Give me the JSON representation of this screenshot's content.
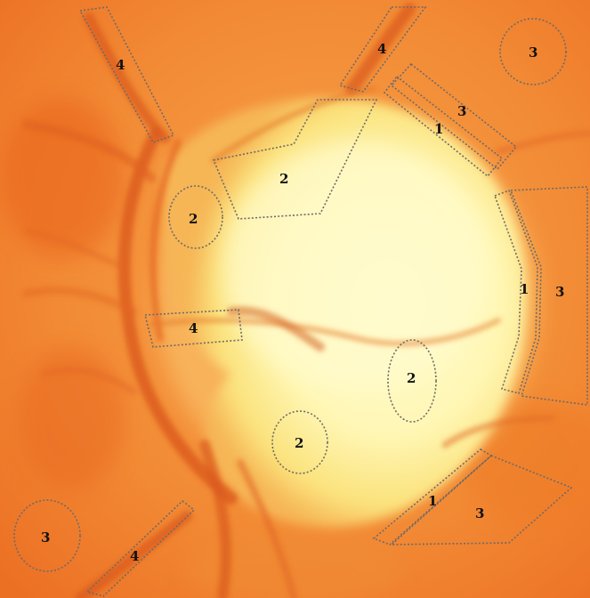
{
  "image": {
    "kind": "fundus-photograph-optic-disc",
    "colors": {
      "background": "#f07a2a",
      "disc_core": "#fffbc8",
      "disc_rim": "#fbe07a",
      "vessel": "#d9551a",
      "outline": "#6e6a66"
    }
  },
  "regions": [
    {
      "label": "4"
    },
    {
      "label": "4"
    },
    {
      "label": "3"
    },
    {
      "label": "3"
    },
    {
      "label": "1"
    },
    {
      "label": "2"
    },
    {
      "label": "2"
    },
    {
      "label": "1"
    },
    {
      "label": "3"
    },
    {
      "label": "4"
    },
    {
      "label": "2"
    },
    {
      "label": "2"
    },
    {
      "label": "1"
    },
    {
      "label": "3"
    },
    {
      "label": "3"
    },
    {
      "label": "4"
    }
  ]
}
